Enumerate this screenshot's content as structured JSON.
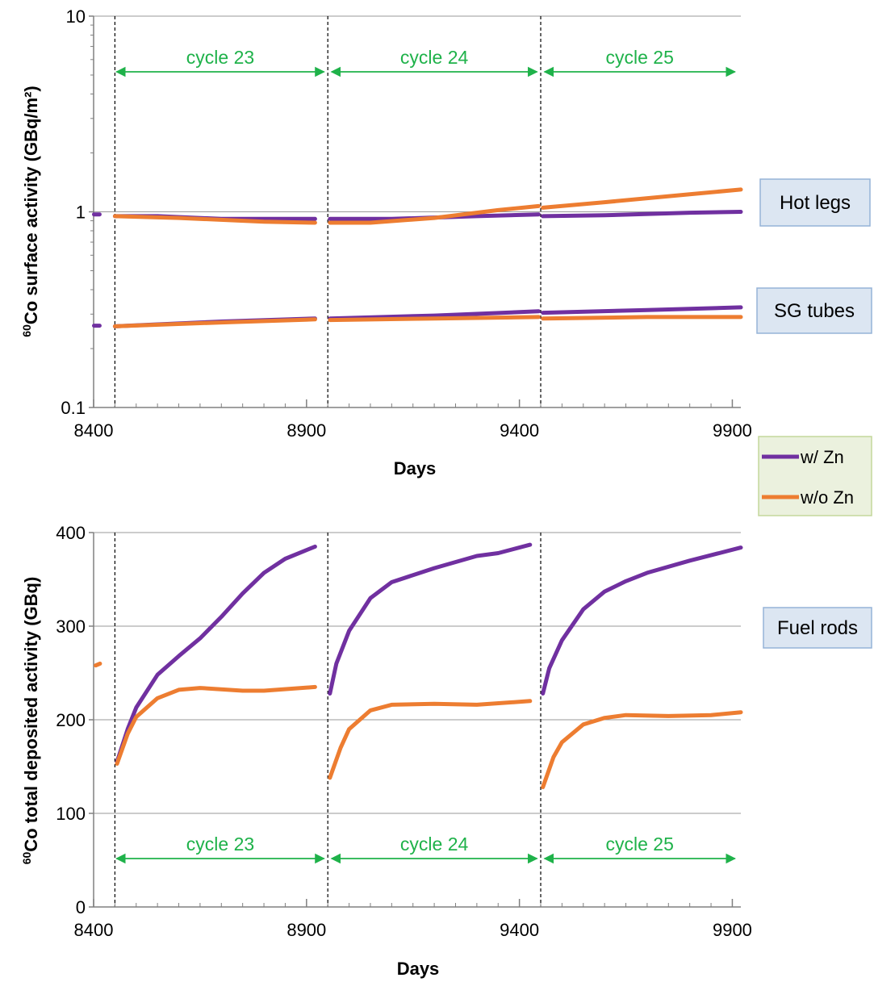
{
  "legend": {
    "items": [
      {
        "label": "w/ Zn",
        "color": "#7030a0"
      },
      {
        "label": "w/o Zn",
        "color": "#ed7d31"
      }
    ]
  },
  "colors": {
    "w_zn": "#7030a0",
    "wo_zn": "#ed7d31",
    "cycle_arrow": "#1fb24a",
    "label_box": "#dce6f2",
    "legend_box": "#ebf1de"
  },
  "chart_data": [
    {
      "type": "line",
      "scale": "log",
      "xlabel": "Days",
      "ylabel_sup": "60",
      "ylabel": "Co surface activity (GBq/m²)",
      "x_ticks": [
        "8400",
        "8900",
        "9400",
        "9900"
      ],
      "y_ticks": [
        "0.1",
        "1",
        "10"
      ],
      "xlim": [
        8400,
        9920
      ],
      "ylim": [
        0.1,
        10
      ],
      "cycle_boundaries": [
        8450,
        8950,
        9450
      ],
      "cycles": [
        {
          "label": "cycle 23",
          "x0": 8450,
          "x1": 8945
        },
        {
          "label": "cycle 24",
          "x0": 8955,
          "x1": 9445
        },
        {
          "label": "cycle 25",
          "x0": 9455,
          "x1": 9910
        }
      ],
      "group_labels": [
        "Hot legs",
        "SG tubes"
      ],
      "series": [
        {
          "name": "w/ Zn",
          "group": "Hot legs",
          "segments": [
            [
              [
                8401,
                0.97
              ],
              [
                8414,
                0.97
              ]
            ],
            [
              [
                8450,
                0.95
              ],
              [
                8550,
                0.95
              ],
              [
                8700,
                0.92
              ],
              [
                8920,
                0.92
              ]
            ],
            [
              [
                8955,
                0.92
              ],
              [
                9100,
                0.92
              ],
              [
                9300,
                0.95
              ],
              [
                9445,
                0.97
              ]
            ],
            [
              [
                9455,
                0.95
              ],
              [
                9600,
                0.96
              ],
              [
                9800,
                0.99
              ],
              [
                9920,
                1.0
              ]
            ]
          ]
        },
        {
          "name": "w/o Zn",
          "group": "Hot legs",
          "segments": [
            [
              [
                8450,
                0.95
              ],
              [
                8600,
                0.93
              ],
              [
                8800,
                0.89
              ],
              [
                8920,
                0.88
              ]
            ],
            [
              [
                8955,
                0.88
              ],
              [
                9050,
                0.88
              ],
              [
                9200,
                0.93
              ],
              [
                9350,
                1.02
              ],
              [
                9445,
                1.07
              ]
            ],
            [
              [
                9455,
                1.05
              ],
              [
                9600,
                1.12
              ],
              [
                9800,
                1.23
              ],
              [
                9920,
                1.3
              ]
            ]
          ]
        },
        {
          "name": "w/ Zn",
          "group": "SG tubes",
          "segments": [
            [
              [
                8401,
                0.262
              ],
              [
                8414,
                0.262
              ]
            ],
            [
              [
                8450,
                0.26
              ],
              [
                8700,
                0.275
              ],
              [
                8920,
                0.285
              ]
            ],
            [
              [
                8955,
                0.285
              ],
              [
                9200,
                0.295
              ],
              [
                9445,
                0.31
              ]
            ],
            [
              [
                9455,
                0.305
              ],
              [
                9700,
                0.315
              ],
              [
                9920,
                0.325
              ]
            ]
          ]
        },
        {
          "name": "w/o Zn",
          "group": "SG tubes",
          "segments": [
            [
              [
                8450,
                0.26
              ],
              [
                8700,
                0.272
              ],
              [
                8920,
                0.282
              ]
            ],
            [
              [
                8955,
                0.28
              ],
              [
                9200,
                0.285
              ],
              [
                9445,
                0.29
              ]
            ],
            [
              [
                9455,
                0.285
              ],
              [
                9700,
                0.29
              ],
              [
                9920,
                0.29
              ]
            ]
          ]
        }
      ]
    },
    {
      "type": "line",
      "scale": "linear",
      "xlabel": "Days",
      "ylabel_sup": "60",
      "ylabel": "Co total deposited activity (GBq)",
      "x_ticks": [
        "8400",
        "8900",
        "9400",
        "9900"
      ],
      "y_ticks": [
        "0",
        "100",
        "200",
        "300",
        "400"
      ],
      "xlim": [
        8400,
        9920
      ],
      "ylim": [
        0,
        400
      ],
      "cycle_boundaries": [
        8450,
        8950,
        9450
      ],
      "cycles": [
        {
          "label": "cycle 23",
          "x0": 8450,
          "x1": 8945
        },
        {
          "label": "cycle 24",
          "x0": 8955,
          "x1": 9445
        },
        {
          "label": "cycle 25",
          "x0": 9455,
          "x1": 9910
        }
      ],
      "group_labels": [
        "Fuel rods"
      ],
      "series": [
        {
          "name": "w/ Zn",
          "segments": [
            [
              [
                8455,
                155
              ],
              [
                8480,
                190
              ],
              [
                8500,
                213
              ],
              [
                8550,
                248
              ],
              [
                8600,
                268
              ],
              [
                8650,
                287
              ],
              [
                8700,
                310
              ],
              [
                8750,
                335
              ],
              [
                8800,
                357
              ],
              [
                8850,
                372
              ],
              [
                8920,
                385
              ]
            ],
            [
              [
                8955,
                228
              ],
              [
                8970,
                260
              ],
              [
                9000,
                295
              ],
              [
                9050,
                330
              ],
              [
                9100,
                347
              ],
              [
                9200,
                362
              ],
              [
                9300,
                375
              ],
              [
                9350,
                378
              ],
              [
                9425,
                387
              ]
            ],
            [
              [
                9455,
                228
              ],
              [
                9470,
                255
              ],
              [
                9500,
                285
              ],
              [
                9550,
                318
              ],
              [
                9600,
                337
              ],
              [
                9650,
                348
              ],
              [
                9700,
                357
              ],
              [
                9800,
                370
              ],
              [
                9920,
                384
              ]
            ]
          ]
        },
        {
          "name": "w/o Zn",
          "segments": [
            [
              [
                8405,
                258
              ],
              [
                8415,
                260
              ]
            ],
            [
              [
                8455,
                153
              ],
              [
                8480,
                185
              ],
              [
                8500,
                203
              ],
              [
                8550,
                223
              ],
              [
                8600,
                232
              ],
              [
                8650,
                234
              ],
              [
                8750,
                231
              ],
              [
                8800,
                231
              ],
              [
                8920,
                235
              ]
            ],
            [
              [
                8955,
                138
              ],
              [
                8980,
                170
              ],
              [
                9000,
                190
              ],
              [
                9050,
                210
              ],
              [
                9100,
                216
              ],
              [
                9200,
                217
              ],
              [
                9300,
                216
              ],
              [
                9425,
                220
              ]
            ],
            [
              [
                9455,
                128
              ],
              [
                9480,
                160
              ],
              [
                9500,
                176
              ],
              [
                9550,
                195
              ],
              [
                9600,
                202
              ],
              [
                9650,
                205
              ],
              [
                9750,
                204
              ],
              [
                9850,
                205
              ],
              [
                9920,
                208
              ]
            ]
          ]
        }
      ]
    }
  ]
}
